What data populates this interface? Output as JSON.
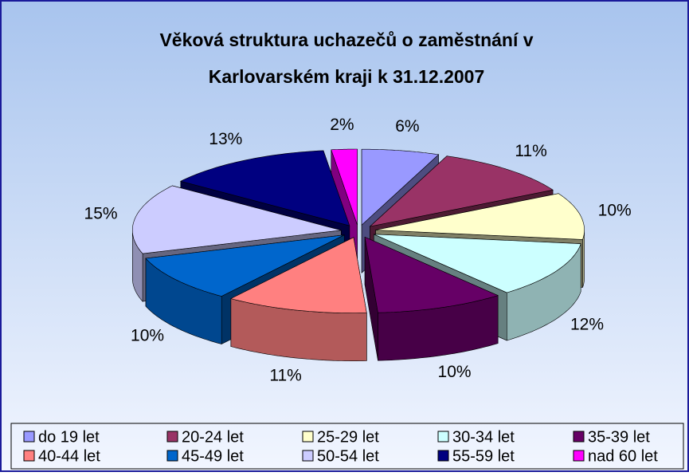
{
  "chart_data": {
    "type": "pie3d",
    "title": [
      "Věková struktura uchazečů o zaměstnání v",
      "Karlovarském kraji k 31.12.2007"
    ],
    "categories": [
      "do 19 let",
      "20-24 let",
      "25-29 let",
      "30-34 let",
      "35-39 let",
      "40-44 let",
      "45-49 let",
      "50-54 let",
      "55-59 let",
      "nad 60 let"
    ],
    "values": [
      6,
      11,
      10,
      12,
      10,
      11,
      10,
      15,
      13,
      2
    ],
    "value_labels": [
      "6%",
      "11%",
      "10%",
      "12%",
      "10%",
      "11%",
      "10%",
      "15%",
      "13%",
      "2%"
    ],
    "colors": [
      "#9999ff",
      "#993366",
      "#ffffcc",
      "#ccffff",
      "#660066",
      "#ff8080",
      "#0066cc",
      "#ccccff",
      "#000080",
      "#ff00ff"
    ],
    "legend": "bottom"
  }
}
